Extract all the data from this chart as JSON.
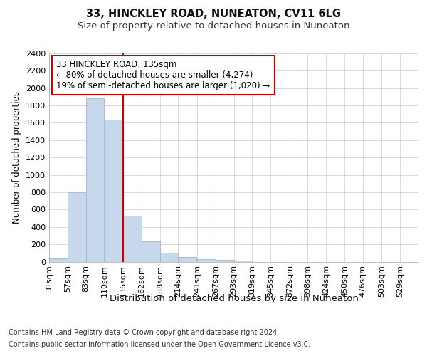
{
  "title1": "33, HINCKLEY ROAD, NUNEATON, CV11 6LG",
  "title2": "Size of property relative to detached houses in Nuneaton",
  "xlabel": "Distribution of detached houses by size in Nuneaton",
  "ylabel": "Number of detached properties",
  "footer1": "Contains HM Land Registry data © Crown copyright and database right 2024.",
  "footer2": "Contains public sector information licensed under the Open Government Licence v3.0.",
  "bins": [
    31,
    57,
    83,
    110,
    136,
    162,
    188,
    214,
    241,
    267,
    293,
    319,
    345,
    372,
    398,
    424,
    450,
    476,
    503,
    529,
    555
  ],
  "bar_heights": [
    40,
    800,
    1880,
    1640,
    530,
    235,
    100,
    50,
    30,
    20,
    15,
    0,
    0,
    0,
    0,
    0,
    0,
    0,
    0,
    0
  ],
  "bar_color": "#c8d8ec",
  "bar_edge_color": "#9bb8d4",
  "ylim": [
    0,
    2400
  ],
  "yticks": [
    0,
    200,
    400,
    600,
    800,
    1000,
    1200,
    1400,
    1600,
    1800,
    2000,
    2200,
    2400
  ],
  "vline_x": 136,
  "vline_color": "#cc0000",
  "annotation_title": "33 HINCKLEY ROAD: 135sqm",
  "annotation_line1": "← 80% of detached houses are smaller (4,274)",
  "annotation_line2": "19% of semi-detached houses are larger (1,020) →",
  "annotation_box_color": "#cc0000",
  "bg_color": "#ffffff",
  "plot_bg_color": "#ffffff",
  "grid_color": "#cccccc",
  "title_fontsize": 10.5,
  "subtitle_fontsize": 9.5,
  "xlabel_fontsize": 9.5,
  "ylabel_fontsize": 8.5,
  "tick_fontsize": 8,
  "annotation_fontsize": 8.5,
  "footer_fontsize": 7
}
